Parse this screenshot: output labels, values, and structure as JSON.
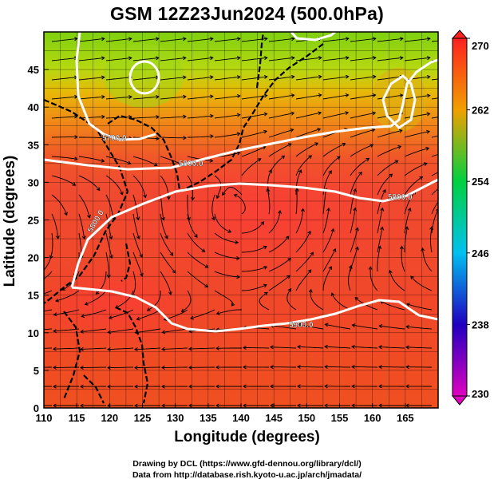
{
  "title": "GSM 12Z23Jun2024 (500.0hPa)",
  "axes": {
    "xlabel": "Longitude (degrees)",
    "ylabel": "Latitude  (degrees)",
    "x_ticks": [
      "110",
      "115",
      "120",
      "125",
      "130",
      "135",
      "140",
      "145",
      "150",
      "155",
      "160",
      "165"
    ],
    "y_ticks": [
      "0",
      "5",
      "10",
      "15",
      "20",
      "25",
      "30",
      "35",
      "40",
      "45"
    ]
  },
  "colorbar": {
    "ticks": [
      "270",
      "262",
      "254",
      "246",
      "238",
      "230"
    ]
  },
  "contours": {
    "labels": [
      "5700.0",
      "5800.0",
      "5800.0",
      "5800.0",
      "5900.0"
    ]
  },
  "credits": {
    "line1": "Drawing by DCL (https://www.gfd-dennou.org/library/dcl/)",
    "line2": "Data from http://database.rish.kyoto-u.ac.jp/arch/jmadata/"
  },
  "chart_data": {
    "type": "heatmap",
    "title": "GSM 12Z23Jun2024 (500.0hPa)",
    "xlabel": "Longitude (degrees)",
    "ylabel": "Latitude  (degrees)",
    "xlim": [
      110,
      170
    ],
    "ylim": [
      0,
      50
    ],
    "color_scale": {
      "min": 230,
      "max": 270,
      "ticks": [
        230,
        238,
        246,
        254,
        262,
        270
      ],
      "colors": [
        "#e000c0",
        "#2000c0",
        "#00c0f0",
        "#00d040",
        "#f0a000",
        "#ff2020"
      ]
    },
    "overlays": [
      "streamlines",
      "geopotential height contours (white)",
      "coastlines"
    ],
    "contour_levels": [
      5700,
      5800,
      5900
    ],
    "grid": true
  }
}
